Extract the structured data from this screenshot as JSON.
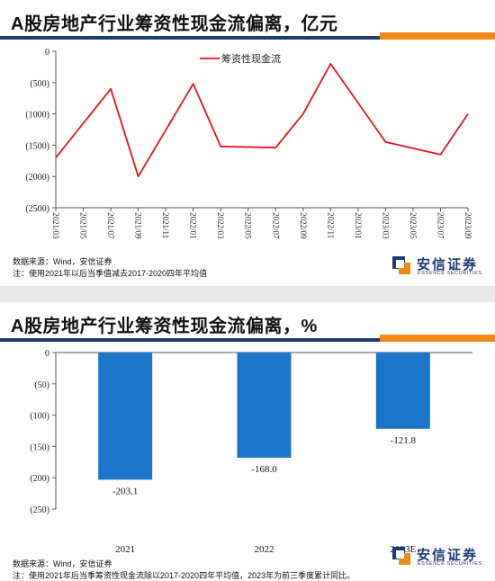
{
  "panel1": {
    "title": "A股房地产行业筹资性现金流偏离，亿元",
    "source": "数据来源：Wind，安信证券",
    "note": "注：使用2021年以后当季值减去2017-2020四年平均值"
  },
  "panel2": {
    "title": "A股房地产行业筹资性现金流偏离，%",
    "source": "数据来源：Wind，安信证券",
    "note": "注：使用2021年后当季筹资性现金流除以2017-2020四年平均值，2023年为前三季度累计同比。"
  },
  "logo": {
    "cn": "安信证券",
    "en": "ESSENCE SECURITIES"
  },
  "colors": {
    "navy": "#1f3b72",
    "orange": "#f08a1a",
    "line": "#e8131b",
    "bar": "#1b75c8"
  },
  "chart_data": [
    {
      "type": "line",
      "categories": [
        "2021/03",
        "2021/05",
        "2021/07",
        "2021/09",
        "2021/11",
        "2022/01",
        "2022/03",
        "2022/05",
        "2022/07",
        "2022/09",
        "2022/11",
        "2023/01",
        "2023/03",
        "2023/05",
        "2023/07",
        "2023/09"
      ],
      "series": [
        {
          "name": "筹资性现金流",
          "values": [
            -1700,
            null,
            -600,
            -2000,
            null,
            -520,
            -1520,
            null,
            -1540,
            -1000,
            -200,
            null,
            -1450,
            null,
            -1650,
            -1000
          ]
        }
      ],
      "ylim": [
        -2500,
        0
      ],
      "yticks": [
        0,
        -500,
        -1000,
        -1500,
        -2000,
        -2500
      ],
      "ytick_labels": [
        "0",
        "(500)",
        "(1000)",
        "(1500)",
        "(2000)",
        "(2500)"
      ],
      "legend": "top-center",
      "grid": false
    },
    {
      "type": "bar",
      "categories": [
        "2021",
        "2022",
        "2023E"
      ],
      "values": [
        -203.1,
        -168.0,
        -121.8
      ],
      "data_labels": [
        "-203.1",
        "-168.0",
        "-121.8"
      ],
      "ylim": [
        -250,
        0
      ],
      "yticks": [
        0,
        -50,
        -100,
        -150,
        -200,
        -250
      ],
      "ytick_labels": [
        "0",
        "(50)",
        "(100)",
        "(150)",
        "(200)",
        "(250)"
      ],
      "grid": false
    }
  ]
}
